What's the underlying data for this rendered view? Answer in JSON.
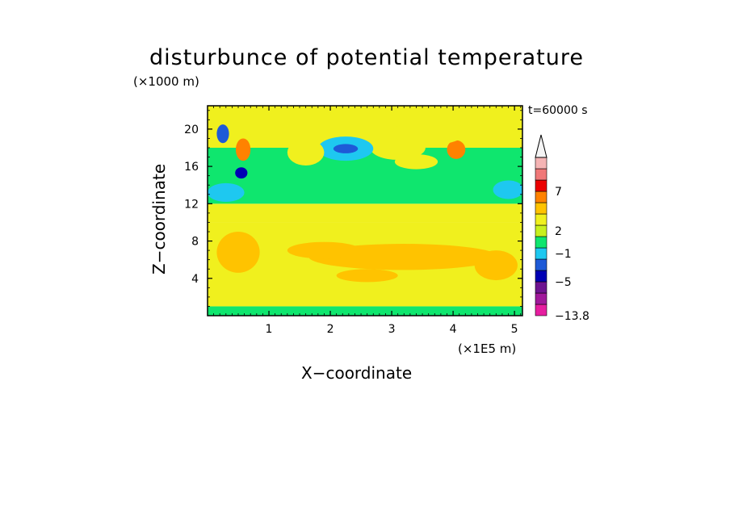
{
  "chart_data": {
    "type": "heatmap",
    "title": "disturbunce of potential temperature",
    "xlabel": "X−coordinate",
    "ylabel": "Z−coordinate",
    "x_unit": "(×1E5 m)",
    "y_unit": "(×1000 m)",
    "time_label": "t=60000 s",
    "x_ticks": [
      "1",
      "2",
      "3",
      "4",
      "5"
    ],
    "y_ticks": [
      "4",
      "8",
      "12",
      "16",
      "20"
    ],
    "xlim": [
      0,
      5.13
    ],
    "ylim": [
      0,
      22.5
    ],
    "colorbar": {
      "min": -13.8,
      "labels": [
        "7",
        "2",
        "−1",
        "−5",
        "−13.8"
      ],
      "colors": [
        "#e61ea0",
        "#a0199b",
        "#6e1491",
        "#0000b4",
        "#1e5ad7",
        "#1ec8f0",
        "#0fe66e",
        "#c8f01e",
        "#f0f01e",
        "#ffc300",
        "#ff8200",
        "#eb0000",
        "#f07878",
        "#f5b4b4"
      ]
    },
    "regions": [
      {
        "z0": 0,
        "z1": 1,
        "color": "#0fe66e"
      },
      {
        "z0": 1,
        "z1": 10,
        "color": "#f0f01e"
      },
      {
        "z0": 10,
        "z1": 12,
        "color": "#f0f01e"
      },
      {
        "z0": 12,
        "z1": 18,
        "color": "#0fe66e"
      },
      {
        "z0": 18,
        "z1": 22.5,
        "color": "#f0f01e"
      }
    ]
  }
}
